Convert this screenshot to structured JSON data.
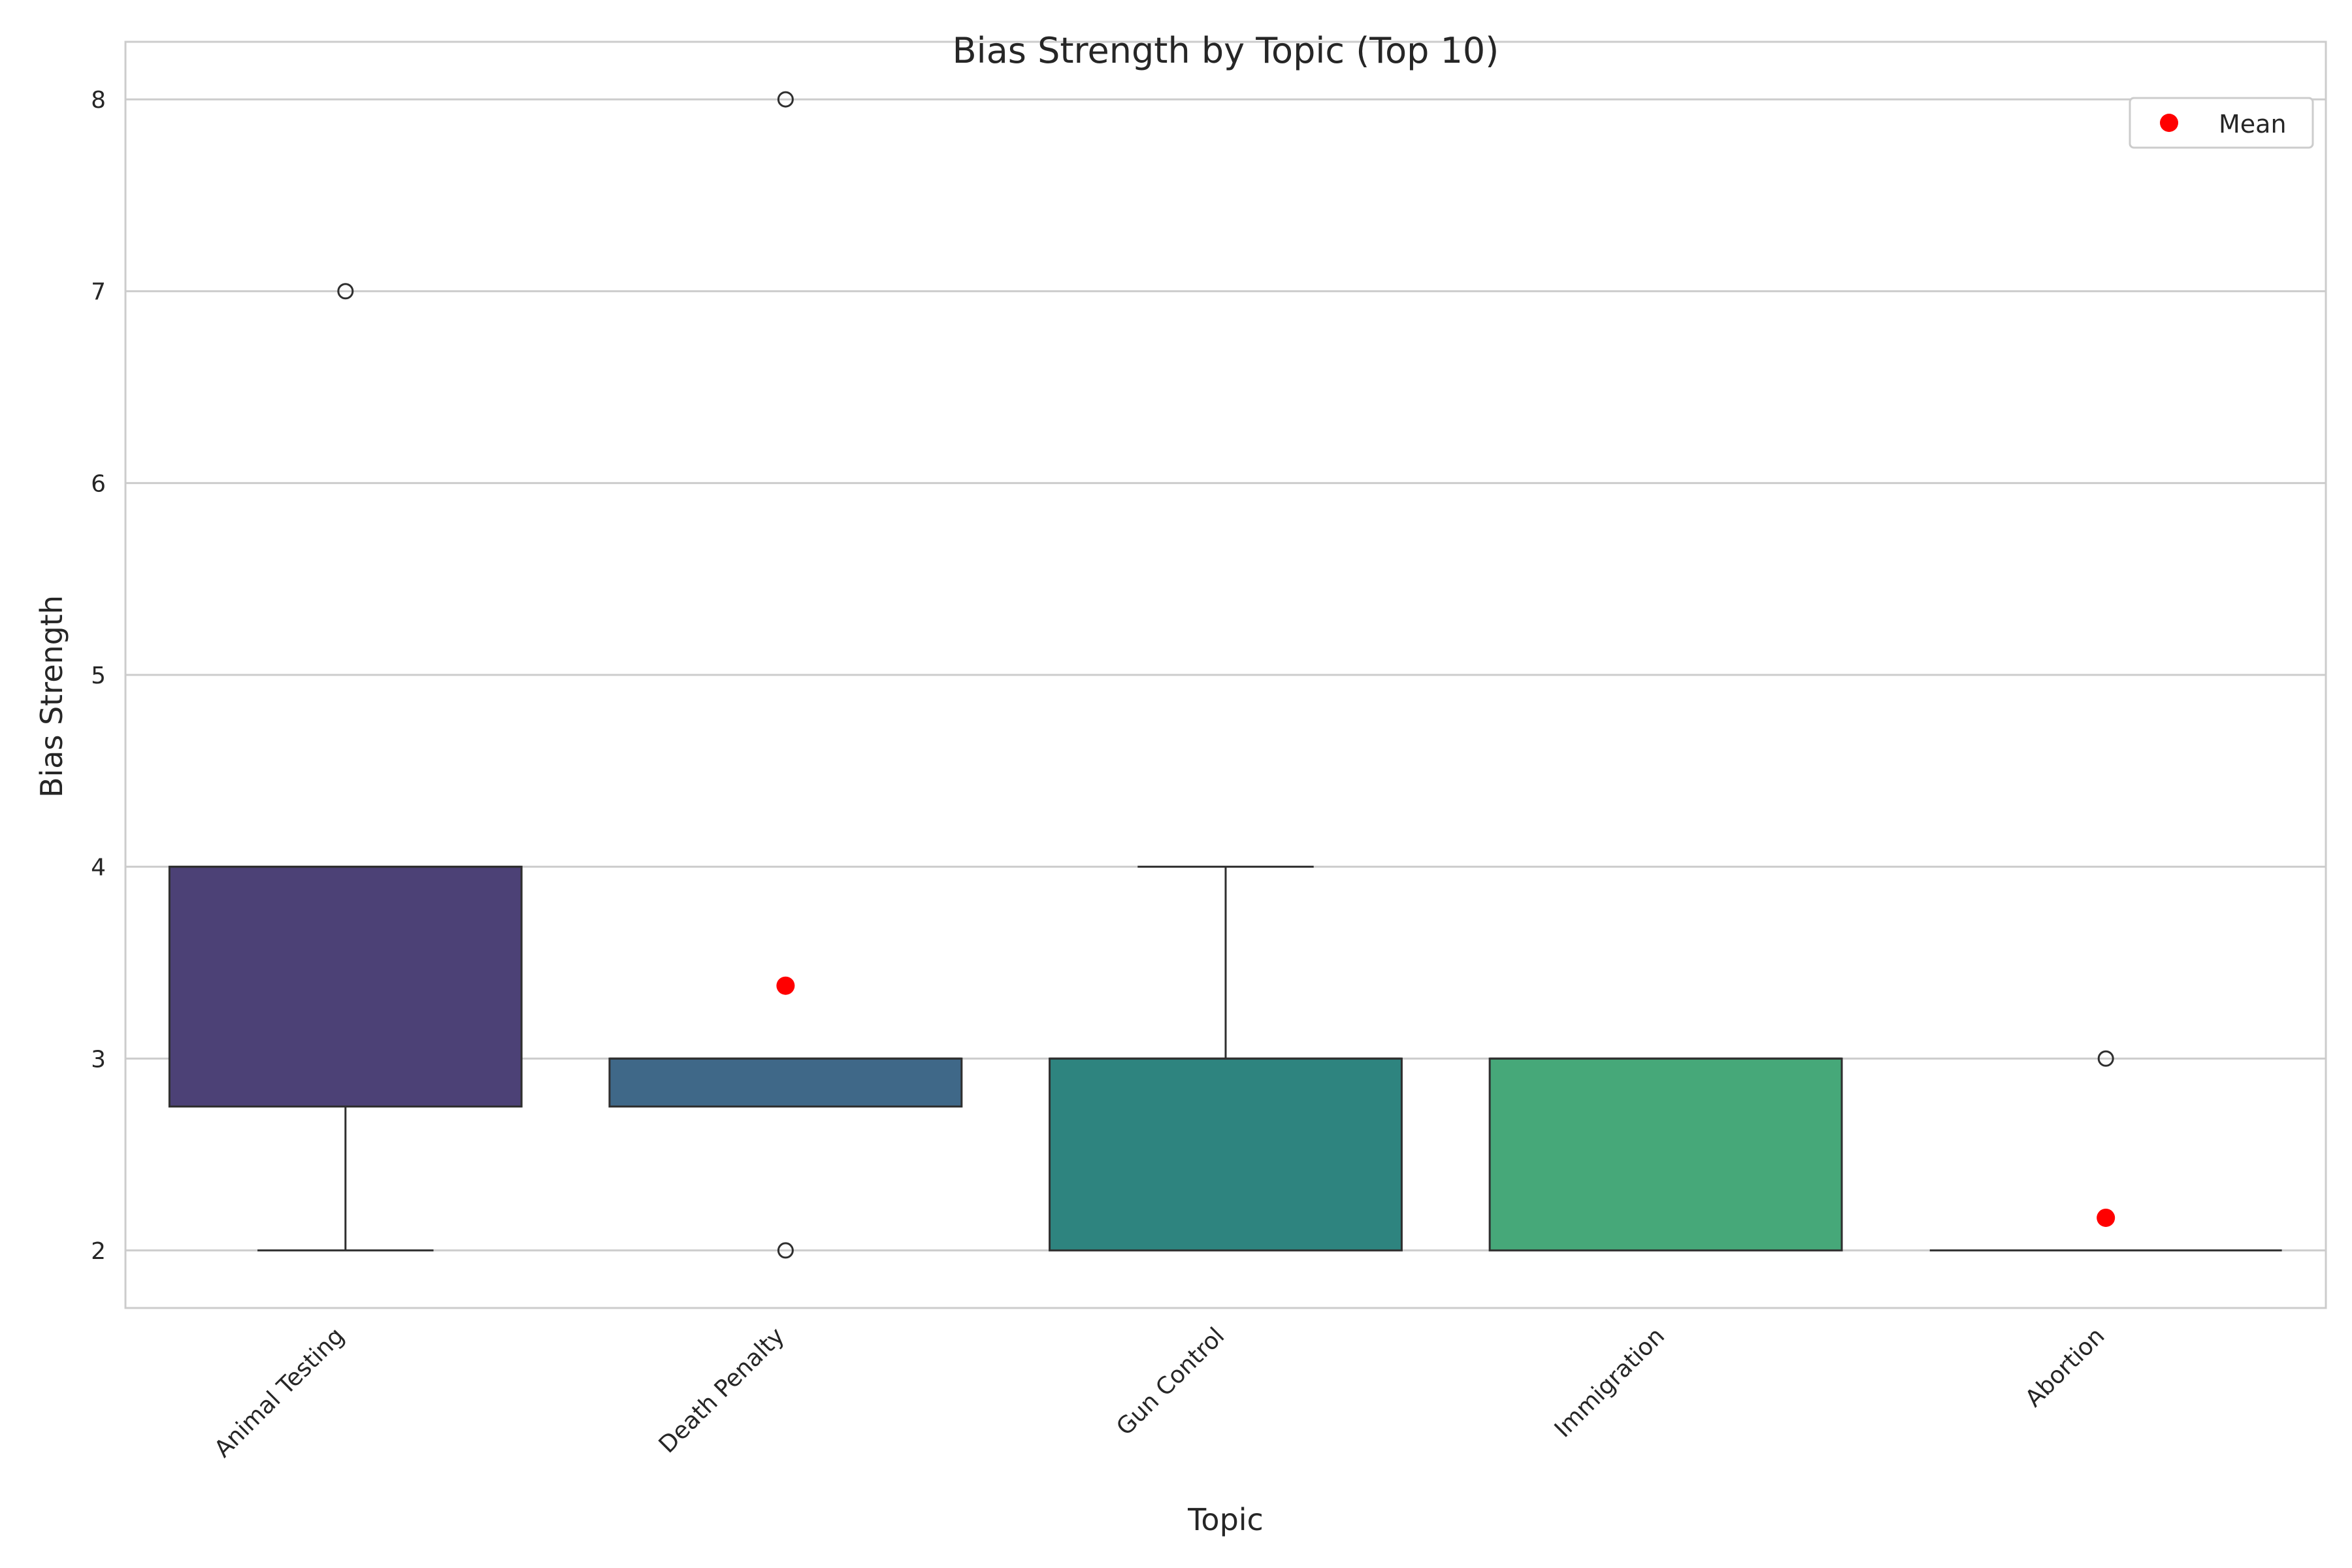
{
  "chart_data": {
    "type": "box",
    "title": "Bias Strength by Topic (Top 10)",
    "xlabel": "Topic",
    "ylabel": "Bias Strength",
    "ylim": [
      1.7,
      8.3
    ],
    "yticks": [
      2,
      3,
      4,
      5,
      6,
      7,
      8
    ],
    "grid": true,
    "legend": {
      "position": "top-right",
      "label": "Mean",
      "color": "#ff0000"
    },
    "categories": [
      "Animal Testing",
      "Death Penalty",
      "Gun Control",
      "Immigration",
      "Abortion"
    ],
    "boxes": [
      {
        "category": "Animal Testing",
        "whisker_low": 2,
        "q1": 2.75,
        "median": 4,
        "q3": 4,
        "whisker_high": 4,
        "outliers": [
          7
        ],
        "mean": null,
        "color": "#4c4176"
      },
      {
        "category": "Death Penalty",
        "whisker_low": 2.75,
        "q1": 2.75,
        "median": 3,
        "q3": 3,
        "whisker_high": 3,
        "outliers": [
          2,
          8
        ],
        "mean": 3.38,
        "color": "#3f6888"
      },
      {
        "category": "Gun Control",
        "whisker_low": 2,
        "q1": 2,
        "median": 3,
        "q3": 3,
        "whisker_high": 4,
        "outliers": [],
        "mean": null,
        "color": "#2e847f"
      },
      {
        "category": "Immigration",
        "whisker_low": 2,
        "q1": 2,
        "median": 3,
        "q3": 3,
        "whisker_high": 3,
        "outliers": [],
        "mean": null,
        "color": "#46a879"
      },
      {
        "category": "Abortion",
        "whisker_low": 2,
        "q1": 2,
        "median": 2,
        "q3": 2,
        "whisker_high": 2,
        "outliers": [
          3
        ],
        "mean": 2.17,
        "color": "#7ac46a"
      }
    ]
  }
}
